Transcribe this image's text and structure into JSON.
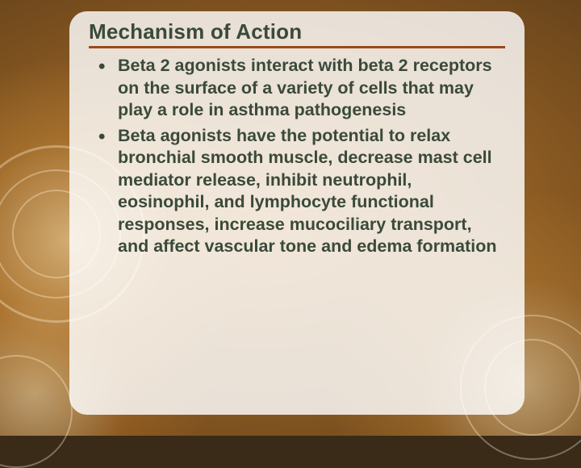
{
  "slide": {
    "title": "Mechanism of Action",
    "bullets": [
      "Beta 2 agonists interact with beta 2 receptors on the surface of a variety of cells that may play a role in asthma pathogenesis",
      "Beta agonists have the potential to relax bronchial smooth muscle, decrease mast cell mediator release, inhibit neutrophil, eosinophil, and lymphocyte functional responses, increase mucociliary transport, and affect vascular tone and edema formation"
    ]
  },
  "style": {
    "title_color": "#3a4a3a",
    "title_fontsize": 26,
    "underline_color": "#9a4a1a",
    "bullet_text_color": "#3a4a3a",
    "bullet_fontsize": 21.5,
    "card_bg": "rgba(255,255,255,0.82)",
    "card_radius": 22,
    "bg_base": "#b57a2e"
  }
}
